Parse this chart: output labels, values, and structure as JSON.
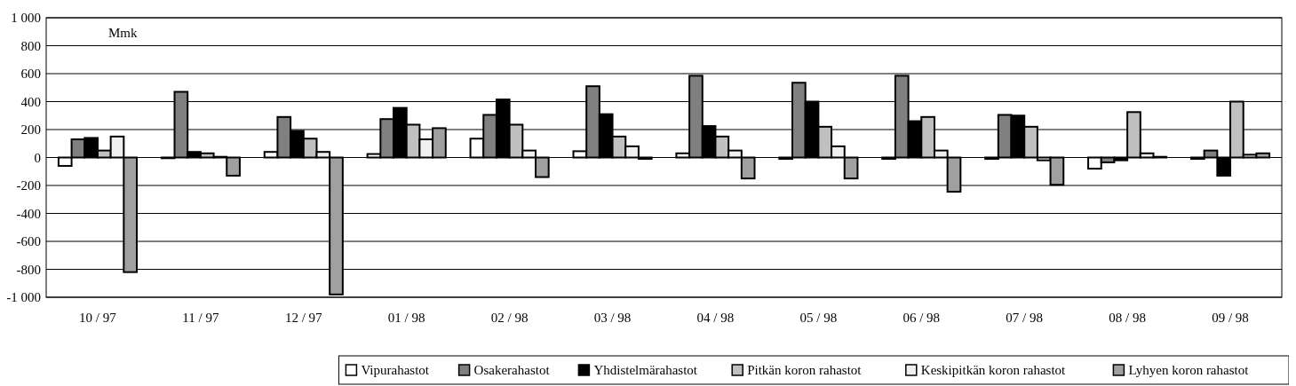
{
  "chart_data": {
    "type": "bar",
    "annotations": [
      "Mmk"
    ],
    "categories": [
      "10 / 97",
      "11 / 97",
      "12 / 97",
      "01 / 98",
      "02 / 98",
      "03 / 98",
      "04 / 98",
      "05 / 98",
      "06 / 98",
      "07 / 98",
      "08 / 98",
      "09 / 98"
    ],
    "series": [
      {
        "name": "Vipurahastot",
        "color": "#ffffff",
        "values": [
          -60,
          -5,
          40,
          25,
          135,
          45,
          30,
          -10,
          -10,
          -10,
          -80,
          -10
        ]
      },
      {
        "name": "Osakerahastot",
        "color": "#808080",
        "values": [
          130,
          470,
          290,
          275,
          305,
          510,
          585,
          535,
          585,
          305,
          -35,
          50
        ]
      },
      {
        "name": "Yhdistelmärahastot",
        "color": "#000000",
        "values": [
          140,
          40,
          190,
          355,
          415,
          310,
          225,
          400,
          260,
          300,
          -20,
          -130
        ]
      },
      {
        "name": "Pitkän koron rahastot",
        "color": "#c0c0c0",
        "values": [
          50,
          30,
          135,
          235,
          235,
          150,
          150,
          220,
          290,
          220,
          325,
          400
        ]
      },
      {
        "name": "Keskipitkän koron rahastot",
        "color": "#f0f0f0",
        "values": [
          150,
          5,
          40,
          130,
          50,
          80,
          50,
          80,
          50,
          -20,
          30,
          20
        ]
      },
      {
        "name": "Lyhyen koron rahastot",
        "color": "#a0a0a0",
        "values": [
          -820,
          -130,
          -980,
          210,
          -140,
          -10,
          -150,
          -150,
          -245,
          -195,
          5,
          30
        ]
      }
    ],
    "ylim": [
      -1000,
      1000
    ],
    "yticks": [
      {
        "value": -1000,
        "label": "-1 000"
      },
      -800,
      -600,
      -400,
      -200,
      0,
      200,
      400,
      600,
      800,
      {
        "value": 1000,
        "label": "1 000"
      }
    ],
    "grid": "y",
    "legend": "bottom"
  }
}
